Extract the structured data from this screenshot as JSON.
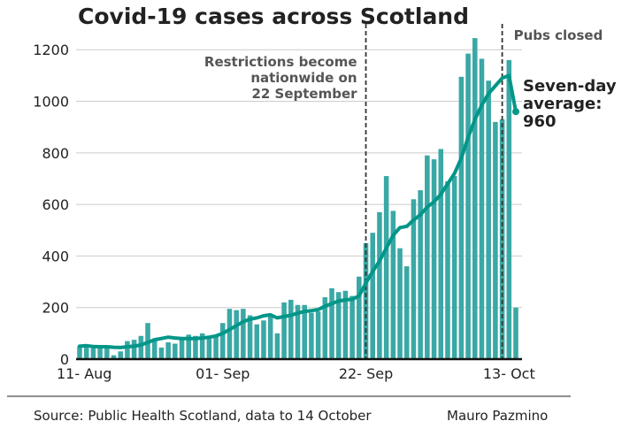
{
  "chart_data": {
    "type": "bar",
    "title": "Covid-19 cases across Scotland",
    "x_tick_labels": [
      "11- Aug",
      "01- Sep",
      "22- Sep",
      "13- Oct"
    ],
    "y_ticks": [
      0,
      200,
      400,
      600,
      800,
      1000,
      1200
    ],
    "ylim": [
      0,
      1290
    ],
    "grid": "horizontal",
    "first_date": "2020-08-11",
    "bar_color": "#3aa8a5",
    "line_color": "#009688",
    "series": [
      {
        "values": [
          50,
          55,
          45,
          50,
          45,
          15,
          30,
          70,
          75,
          90,
          140,
          80,
          45,
          65,
          60,
          75,
          95,
          90,
          100,
          85,
          90,
          140,
          195,
          190,
          195,
          170,
          135,
          150,
          165,
          100,
          220,
          230,
          210,
          210,
          180,
          185,
          240,
          275,
          260,
          265,
          245,
          320,
          450,
          490,
          570,
          710,
          575,
          430,
          360,
          620,
          655,
          790,
          775,
          815,
          690,
          710,
          1095,
          1185,
          1245,
          1165,
          1080,
          920,
          930,
          1160,
          200
        ]
      },
      {
        "values": [
          50,
          52,
          49,
          48,
          48,
          46,
          45,
          48,
          50,
          55,
          65,
          75,
          80,
          85,
          82,
          80,
          80,
          80,
          82,
          85,
          90,
          100,
          115,
          130,
          145,
          155,
          160,
          168,
          172,
          160,
          165,
          170,
          178,
          185,
          188,
          192,
          205,
          215,
          225,
          230,
          232,
          245,
          295,
          340,
          380,
          430,
          480,
          510,
          515,
          540,
          560,
          590,
          610,
          640,
          680,
          720,
          780,
          860,
          930,
          985,
          1030,
          1060,
          1090,
          1100,
          960
        ]
      }
    ],
    "annotations": [
      {
        "date": "2020-09-22",
        "text": [
          "Restrictions become",
          "nationwide on",
          "22 September"
        ]
      },
      {
        "date": "2020-10-12",
        "text": [
          "Pubs closed"
        ]
      }
    ],
    "callout": [
      "Seven-day",
      "average:",
      "960"
    ]
  },
  "footer": {
    "source": "Source: Public Health Scotland, data to 14 October",
    "author": "Mauro Pazmino"
  }
}
